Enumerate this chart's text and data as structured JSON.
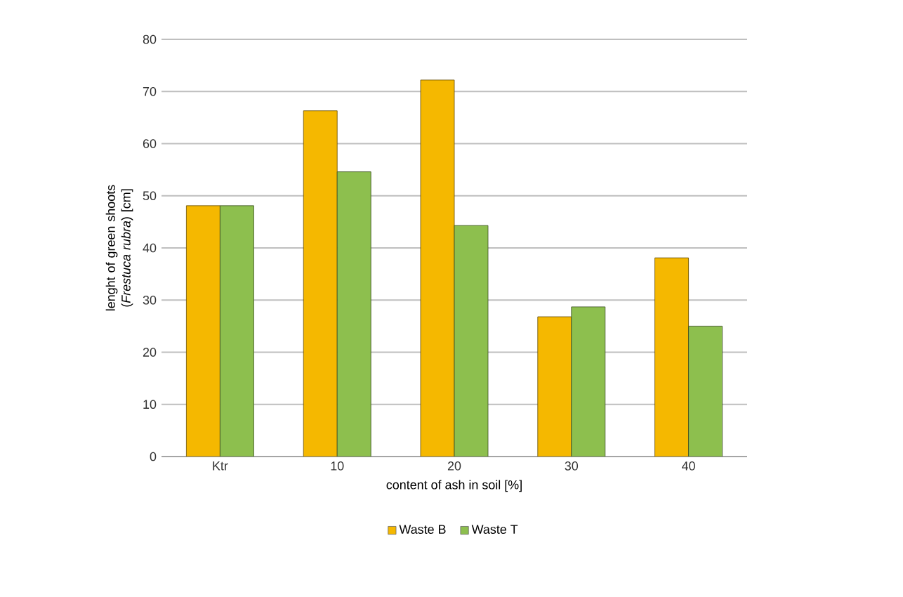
{
  "chart_data": {
    "type": "bar",
    "xlabel": "content of ash in soil [%]",
    "ylabel": "lenght of green shoots (*Frestuca rubra*) [cm]",
    "categories": [
      "Ktr",
      "10",
      "20",
      "30",
      "40"
    ],
    "series": [
      {
        "name": "Waste B",
        "color": "#f5b800",
        "values": [
          48.1,
          66.3,
          72.2,
          26.8,
          38.1
        ]
      },
      {
        "name": "Waste T",
        "color": "#8dbf4e",
        "values": [
          48.1,
          54.6,
          44.3,
          28.7,
          25.0
        ]
      }
    ],
    "ylim": [
      0,
      80
    ],
    "yticks": [
      0,
      10,
      20,
      30,
      40,
      50,
      60,
      70,
      80
    ],
    "grid": "y",
    "legend": "bottom"
  }
}
